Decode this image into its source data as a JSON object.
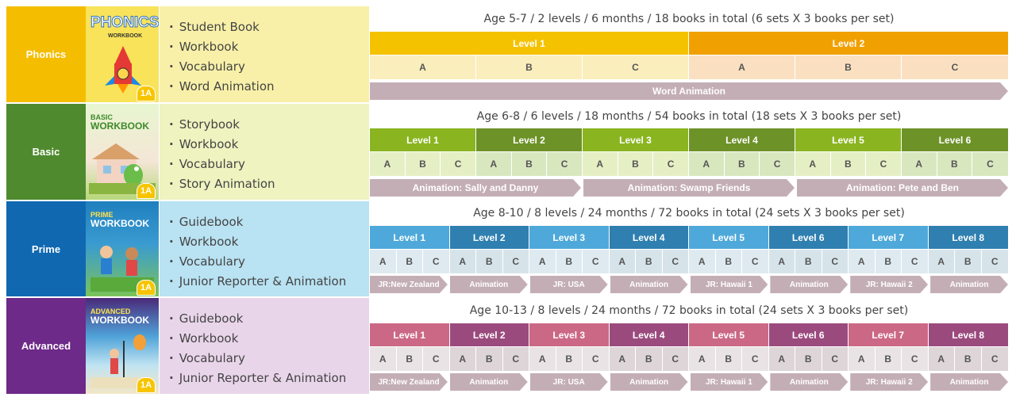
{
  "rows": [
    {
      "label": "Phonics",
      "cover_title": "PHONICS",
      "cover_sub": "WORKBOOK",
      "cover_badge": "1A",
      "books": [
        "Student Book",
        "Workbook",
        "Vocabulary",
        "Word Animation"
      ]
    },
    {
      "label": "Basic",
      "cover_title": "BASIC",
      "cover_sub": "WORKBOOK",
      "cover_badge": "1A",
      "books": [
        "Storybook",
        "Workbook",
        "Vocabulary",
        "Story Animation"
      ]
    },
    {
      "label": "Prime",
      "cover_title": "PRIME",
      "cover_sub": "WORKBOOK",
      "cover_badge": "1A",
      "books": [
        "Guidebook",
        "Workbook",
        "Vocabulary",
        "Junior Reporter & Animation"
      ]
    },
    {
      "label": "Advanced",
      "cover_title": "ADVANCED",
      "cover_sub": "WORKBOOK",
      "cover_badge": "1A",
      "books": [
        "Guidebook",
        "Workbook",
        "Vocabulary",
        "Junior Reporter & Animation"
      ]
    }
  ],
  "panels": [
    {
      "title": "Age 5-7 / 2 levels / 6 months / 18 books in total (6 sets X 3 books per set)",
      "levels": [
        "Level 1",
        "Level 2"
      ],
      "subs": [
        "A",
        "B",
        "C"
      ],
      "anims": [
        "Word Animation"
      ]
    },
    {
      "title": "Age 6-8 / 6 levels / 18 months / 54 books in total (18 sets X 3 books per set)",
      "levels": [
        "Level 1",
        "Level 2",
        "Level 3",
        "Level 4",
        "Level 5",
        "Level 6"
      ],
      "subs": [
        "A",
        "B",
        "C"
      ],
      "anims": [
        "Animation: Sally and Danny",
        "Animation: Swamp Friends",
        "Animation: Pete and Ben"
      ]
    },
    {
      "title": "Age 8-10 / 8 levels / 24 months / 72 books in total (24 sets X 3 books per set)",
      "levels": [
        "Level 1",
        "Level 2",
        "Level 3",
        "Level 4",
        "Level 5",
        "Level 6",
        "Level 7",
        "Level 8"
      ],
      "subs": [
        "A",
        "B",
        "C"
      ],
      "anims": [
        "JR:New Zealand",
        "Animation",
        "JR: USA",
        "Animation",
        "JR: Hawaii 1",
        "Animation",
        "JR: Hawaii 2",
        "Animation"
      ]
    },
    {
      "title": "Age 10-13 / 8 levels / 24 months / 72 books in total (24 sets X 3 books per set)",
      "levels": [
        "Level 1",
        "Level 2",
        "Level 3",
        "Level 4",
        "Level 5",
        "Level 6",
        "Level 7",
        "Level 8"
      ],
      "subs": [
        "A",
        "B",
        "C"
      ],
      "anims": [
        "JR:New Zealand",
        "Animation",
        "JR: USA",
        "Animation",
        "JR: Hawaii 1",
        "Animation",
        "JR: Hawaii 2",
        "Animation"
      ]
    }
  ],
  "colors": {
    "phonics": {
      "label": "#f5bd00",
      "books": "#f8f0a8",
      "lv": [
        "#f5c200",
        "#f0a000"
      ],
      "sub": [
        "#faeebc",
        "#fae0c0"
      ]
    },
    "basic": {
      "label": "#4f8a2e",
      "books": "#eef3c0",
      "lv": [
        "#8ab520",
        "#6d9228"
      ],
      "sub": [
        "#e5efc4",
        "#d9e7bf"
      ]
    },
    "prime": {
      "label": "#1068b0",
      "books": "#b9e2f2",
      "lv": [
        "#4ea9da",
        "#2f7fb0"
      ],
      "sub": [
        "#dfeaf0",
        "#d6e4ea"
      ]
    },
    "advanced": {
      "label": "#6d2a88",
      "books": "#e9d5ea",
      "lv": [
        "#cb6885",
        "#9b4a7e"
      ],
      "sub": [
        "#e9e3e5",
        "#ddd5d8"
      ]
    }
  }
}
